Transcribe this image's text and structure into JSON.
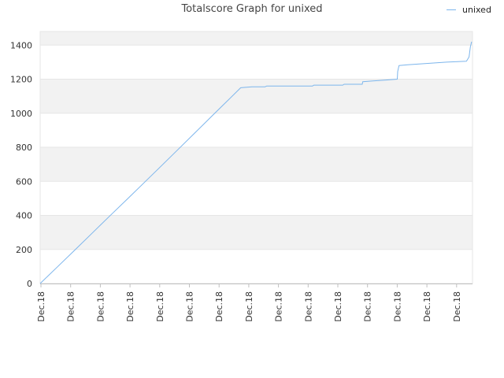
{
  "chart_data": {
    "type": "line",
    "title": "Totalscore Graph for unixed",
    "xlabel": "",
    "ylabel": "",
    "ylim": [
      0,
      1480
    ],
    "yticks": [
      0,
      200,
      400,
      600,
      800,
      1000,
      1200,
      1400
    ],
    "xtick_labels": [
      "Dec.18",
      "Dec.18",
      "Dec.18",
      "Dec.18",
      "Dec.18",
      "Dec.18",
      "Dec.18",
      "Dec.18",
      "Dec.18",
      "Dec.18",
      "Dec.18",
      "Dec.18",
      "Dec.18",
      "Dec.18",
      "Dec.18"
    ],
    "grid": "horizontal, alternating bands",
    "legend": "top-right",
    "colors": {
      "series": "#7cb5ec",
      "band": "#f2f2f2",
      "grid": "#e6e6e6",
      "axis": "#c0c0c0"
    },
    "series": [
      {
        "name": "unixed",
        "points": [
          [
            0,
            0
          ],
          [
            4,
            98
          ],
          [
            8,
            196
          ],
          [
            12,
            295
          ],
          [
            16,
            394
          ],
          [
            20,
            492
          ],
          [
            24,
            591
          ],
          [
            28,
            690
          ],
          [
            32,
            790
          ],
          [
            36,
            890
          ],
          [
            40,
            990
          ],
          [
            44,
            1090
          ],
          [
            46.4,
            1150
          ],
          [
            49,
            1155
          ],
          [
            52,
            1155
          ],
          [
            52.4,
            1160
          ],
          [
            56,
            1160
          ],
          [
            60,
            1160
          ],
          [
            63,
            1160
          ],
          [
            63.3,
            1165
          ],
          [
            67,
            1165
          ],
          [
            70,
            1165
          ],
          [
            70.3,
            1170
          ],
          [
            74.5,
            1170
          ],
          [
            74.6,
            1185
          ],
          [
            77,
            1190
          ],
          [
            80,
            1195
          ],
          [
            82.6,
            1200
          ],
          [
            82.7,
            1245
          ],
          [
            83,
            1280
          ],
          [
            85,
            1285
          ],
          [
            88,
            1290
          ],
          [
            91,
            1295
          ],
          [
            94,
            1300
          ],
          [
            98.6,
            1305
          ],
          [
            99.2,
            1330
          ],
          [
            99.5,
            1390
          ],
          [
            99.8,
            1420
          ]
        ]
      }
    ]
  }
}
